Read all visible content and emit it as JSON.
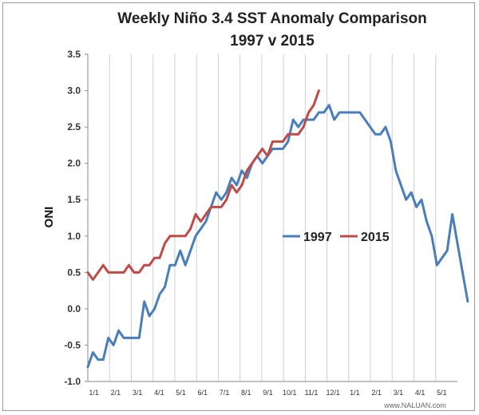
{
  "chart_data": {
    "type": "line",
    "title": "Weekly Niño 3.4 SST Anomaly Comparison",
    "subtitle": "1997 v 2015",
    "ylabel": "ONI",
    "xlabel": "",
    "ylim": [
      -1.0,
      3.5
    ],
    "yticks": [
      "-1.0",
      "-0.5",
      "0.0",
      "0.5",
      "1.0",
      "1.5",
      "2.0",
      "2.5",
      "3.0",
      "3.5"
    ],
    "ytick_values": [
      -1.0,
      -0.5,
      0.0,
      0.5,
      1.0,
      1.5,
      2.0,
      2.5,
      3.0,
      3.5
    ],
    "xtick_labels": [
      "1/1",
      "2/1",
      "3/1",
      "4/1",
      "5/1",
      "6/1",
      "7/1",
      "8/1",
      "9/1",
      "10/1",
      "11/1",
      "12/1",
      "1/1",
      "2/1",
      "3/1",
      "4/1",
      "5/1"
    ],
    "x_unit": "week",
    "x_range": [
      0,
      72
    ],
    "grid": "vertical",
    "legend": "center-right",
    "series": [
      {
        "name": "1997",
        "color": "#4a7ebb",
        "values": [
          -0.8,
          -0.6,
          -0.7,
          -0.7,
          -0.4,
          -0.5,
          -0.3,
          -0.4,
          -0.4,
          -0.4,
          -0.4,
          0.1,
          -0.1,
          0.0,
          0.2,
          0.3,
          0.6,
          0.6,
          0.8,
          0.6,
          0.8,
          1.0,
          1.1,
          1.2,
          1.4,
          1.6,
          1.5,
          1.6,
          1.8,
          1.7,
          1.9,
          1.8,
          2.0,
          2.1,
          2.0,
          2.1,
          2.2,
          2.2,
          2.2,
          2.3,
          2.6,
          2.5,
          2.6,
          2.6,
          2.6,
          2.7,
          2.7,
          2.8,
          2.6,
          2.7,
          2.7,
          2.7,
          2.7,
          2.7,
          2.6,
          2.5,
          2.4,
          2.4,
          2.5,
          2.3,
          1.9,
          1.7,
          1.5,
          1.6,
          1.4,
          1.5,
          1.2,
          1.0,
          0.6,
          0.7,
          0.8,
          1.3,
          0.9,
          0.5,
          0.1
        ]
      },
      {
        "name": "2015",
        "color": "#be4b48",
        "values": [
          0.5,
          0.4,
          0.5,
          0.6,
          0.5,
          0.5,
          0.5,
          0.5,
          0.6,
          0.5,
          0.5,
          0.6,
          0.6,
          0.7,
          0.7,
          0.9,
          1.0,
          1.0,
          1.0,
          1.0,
          1.1,
          1.3,
          1.2,
          1.3,
          1.4,
          1.4,
          1.4,
          1.5,
          1.7,
          1.6,
          1.7,
          1.9,
          2.0,
          2.1,
          2.2,
          2.1,
          2.3,
          2.3,
          2.3,
          2.4,
          2.4,
          2.4,
          2.5,
          2.7,
          2.8,
          3.0
        ]
      }
    ]
  },
  "watermark": "www.NALUAN.com"
}
